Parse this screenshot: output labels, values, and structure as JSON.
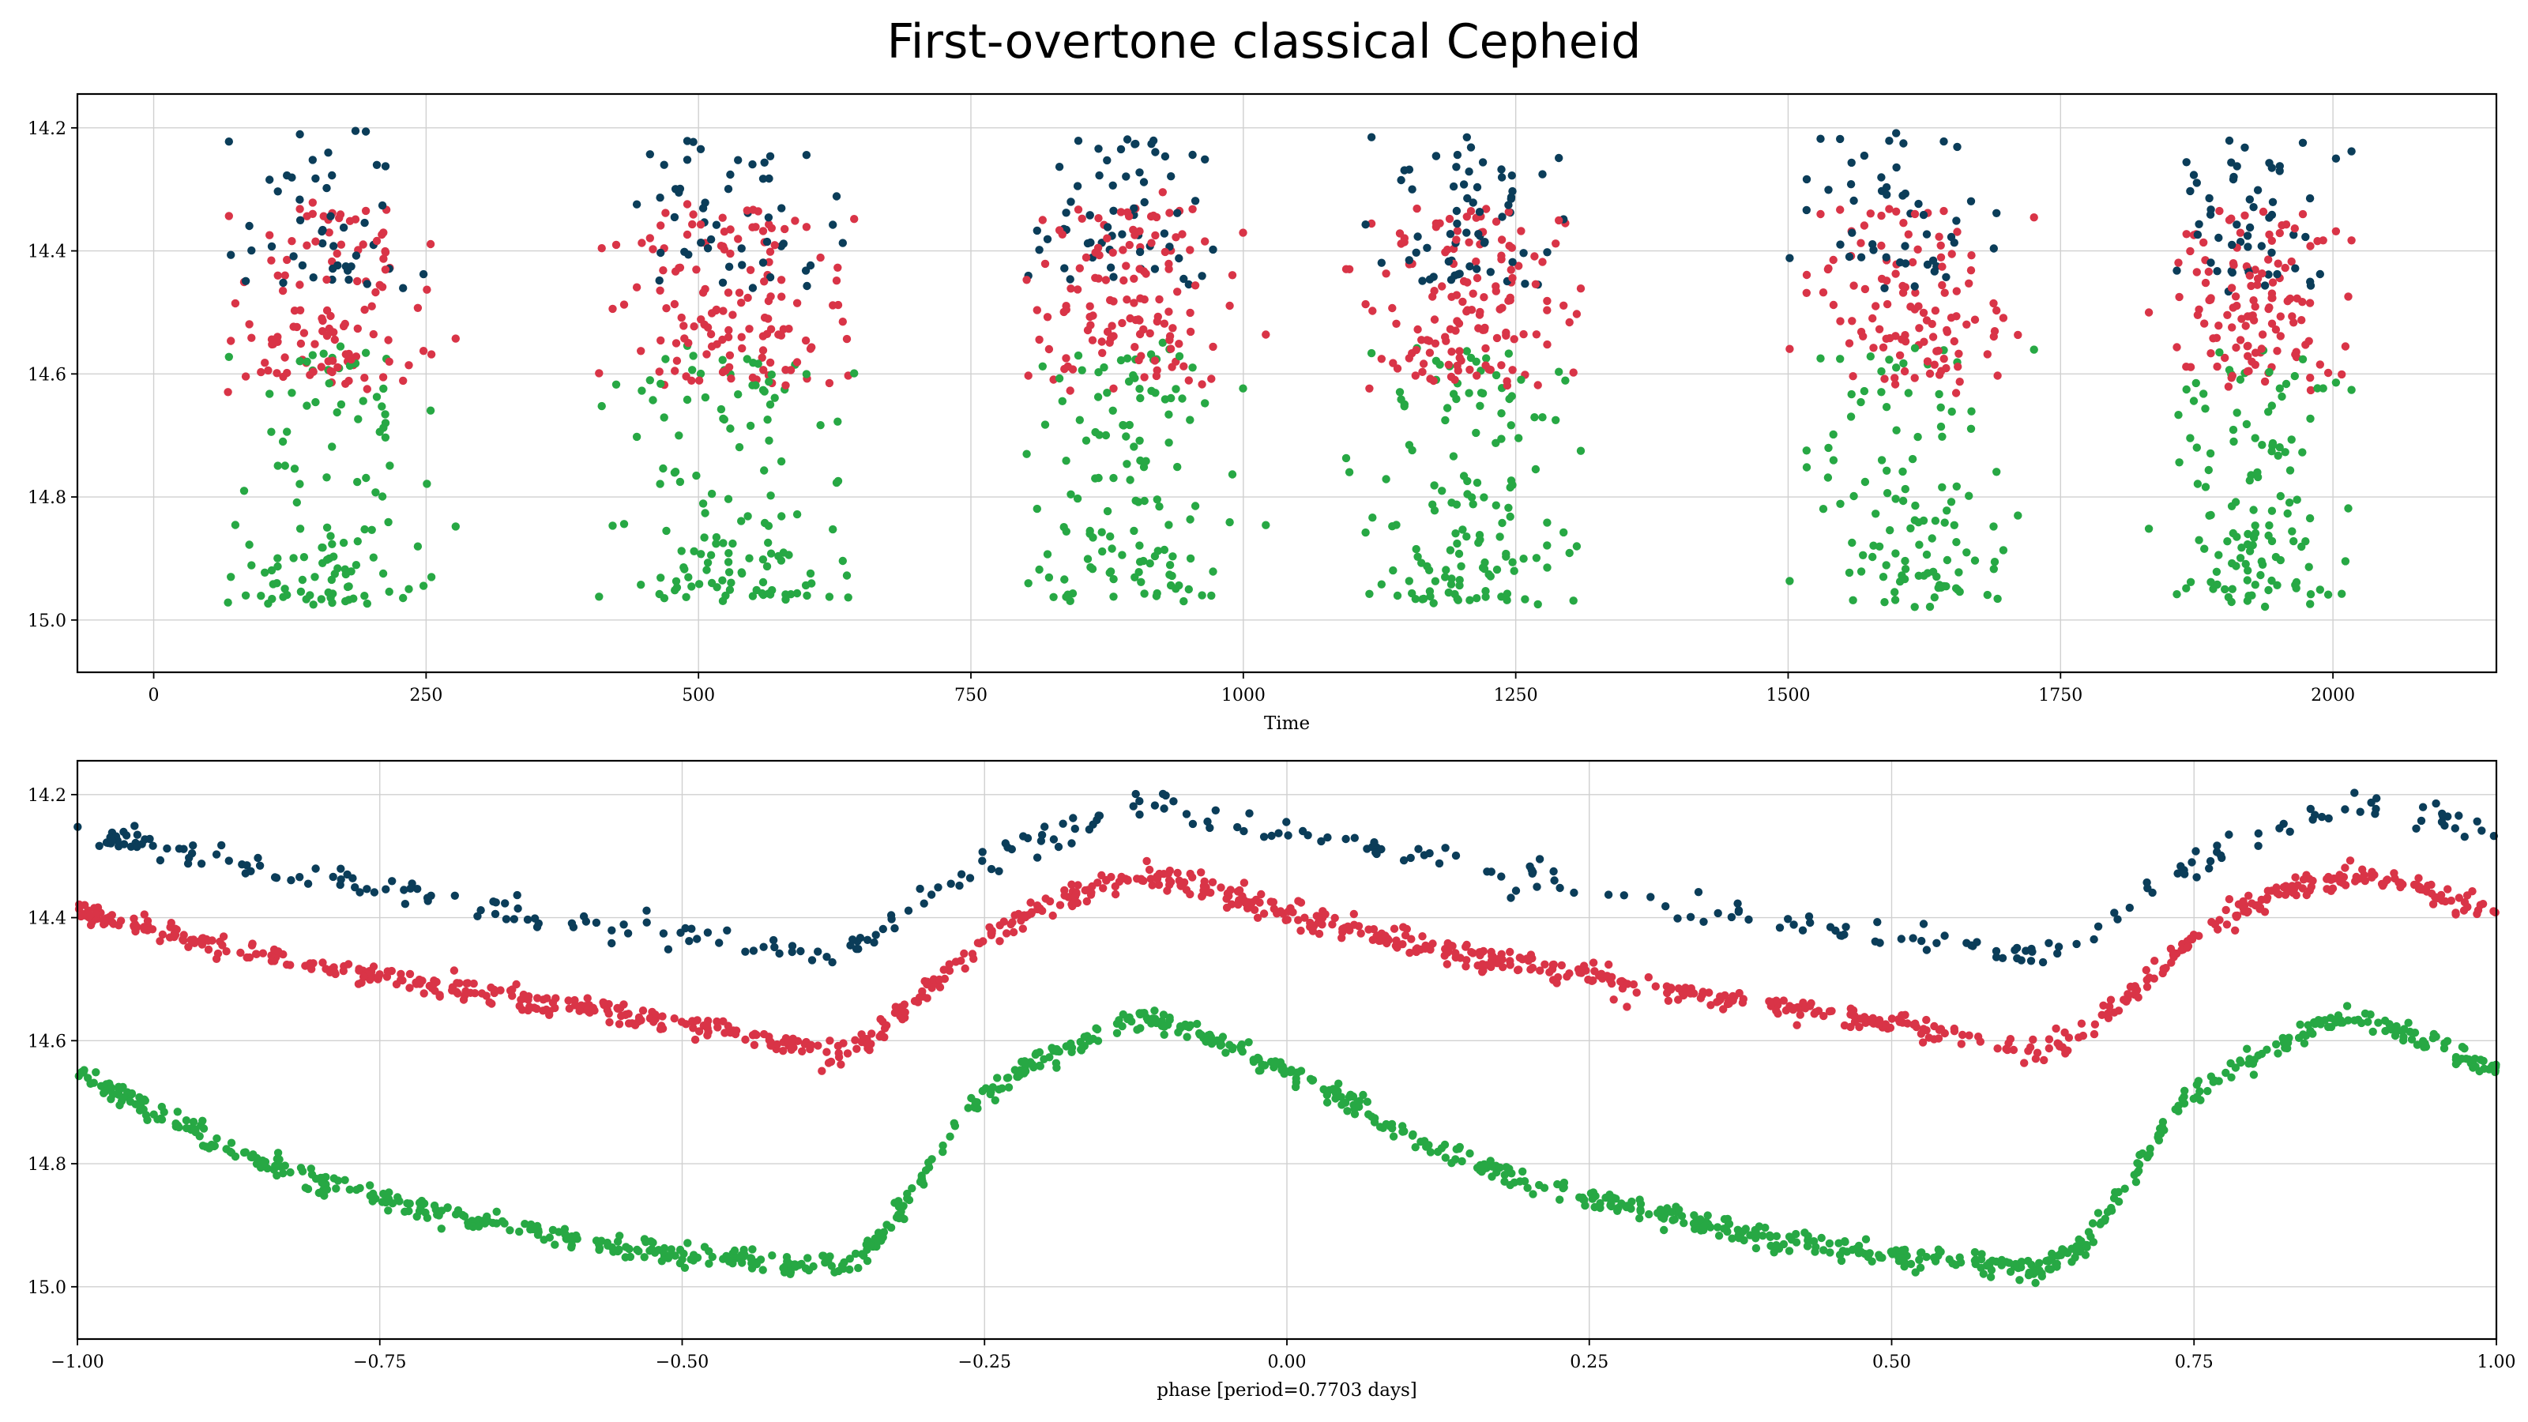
{
  "figure": {
    "title": "First-overtone classical Cepheid"
  },
  "colors": {
    "band_blue": "#0b3d59",
    "band_red": "#d93447",
    "band_green": "#27a844"
  },
  "chart_data": [
    {
      "type": "scatter",
      "title": "First-overtone classical Cepheid",
      "xlabel": "Time",
      "ylabel": "",
      "xlim": [
        -70,
        2150
      ],
      "ylim": [
        15.085,
        14.145
      ],
      "y_inverted": true,
      "grid": true,
      "xticks": [
        "0",
        "250",
        "500",
        "750",
        "1000",
        "1250",
        "1500",
        "1750",
        "2000"
      ],
      "yticks": [
        "14.2",
        "14.4",
        "14.6",
        "14.8",
        "15.0"
      ],
      "observing_seasons": [
        [
          35,
          290
        ],
        [
          380,
          670
        ],
        [
          750,
          1040
        ],
        [
          1080,
          1355
        ],
        [
          1480,
          1740
        ],
        [
          1815,
          2055
        ]
      ],
      "series": [
        {
          "color": "#0b3d59",
          "mag_range": [
            14.2,
            14.48
          ]
        },
        {
          "color": "#d93447",
          "mag_range": [
            14.31,
            14.63
          ]
        },
        {
          "color": "#27a844",
          "mag_range": [
            14.56,
            15.0
          ]
        }
      ]
    },
    {
      "type": "scatter",
      "xlabel": "phase [period=0.7703 days]",
      "ylabel": "",
      "xlim": [
        -1.0,
        1.0
      ],
      "ylim": [
        15.085,
        14.145
      ],
      "y_inverted": true,
      "grid": true,
      "xticks": [
        "−1.00",
        "−0.75",
        "−0.50",
        "−0.25",
        "0.00",
        "0.25",
        "0.50",
        "0.75",
        "1.00"
      ],
      "yticks": [
        "14.2",
        "14.4",
        "14.6",
        "14.8",
        "15.0"
      ],
      "period_days": 0.7703,
      "series": [
        {
          "color": "#0b3d59",
          "phase": [
            -0.375,
            -0.33,
            -0.28,
            -0.22,
            -0.16,
            -0.13,
            -0.08,
            -0.02,
            0.08,
            0.2,
            0.35,
            0.5,
            0.625
          ],
          "mag": [
            14.46,
            14.42,
            14.34,
            14.29,
            14.24,
            14.21,
            14.23,
            14.25,
            14.29,
            14.33,
            14.39,
            14.43,
            14.46
          ]
        },
        {
          "color": "#d93447",
          "phase": [
            -0.375,
            -0.34,
            -0.29,
            -0.24,
            -0.19,
            -0.15,
            -0.12,
            -0.08,
            -0.02,
            0.08,
            0.2,
            0.35,
            0.5,
            0.625
          ],
          "mag": [
            14.62,
            14.59,
            14.5,
            14.42,
            14.37,
            14.34,
            14.33,
            14.345,
            14.38,
            14.43,
            14.48,
            14.53,
            14.57,
            14.62
          ]
        },
        {
          "color": "#27a844",
          "phase": [
            -0.375,
            -0.34,
            -0.31,
            -0.27,
            -0.23,
            -0.19,
            -0.15,
            -0.13,
            -0.1,
            -0.06,
            0.0,
            0.06,
            0.12,
            0.2,
            0.3,
            0.4,
            0.5,
            0.625
          ],
          "mag": [
            14.97,
            14.93,
            14.85,
            14.72,
            14.66,
            14.62,
            14.58,
            14.56,
            14.57,
            14.6,
            14.65,
            14.71,
            14.77,
            14.83,
            14.88,
            14.92,
            14.95,
            14.97
          ]
        }
      ]
    }
  ]
}
